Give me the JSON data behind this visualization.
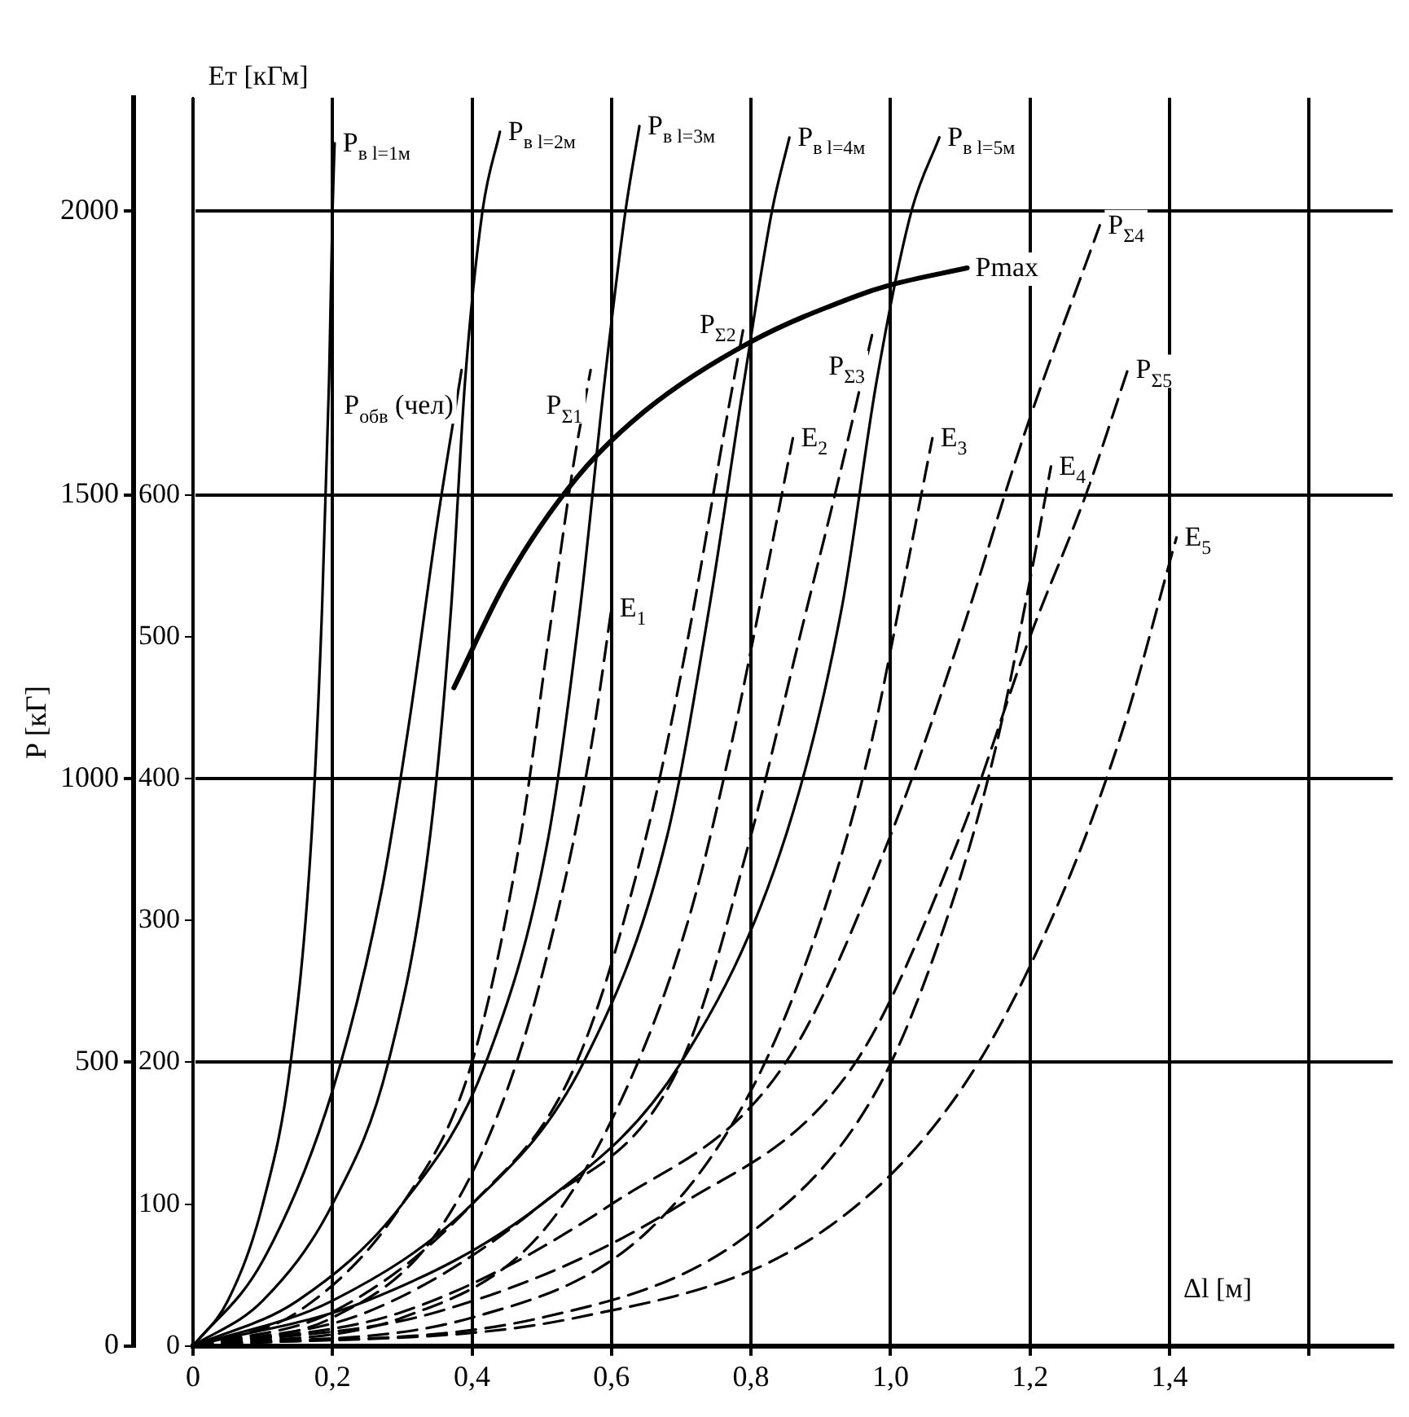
{
  "chart_data": {
    "type": "line",
    "xlabel": "Δl [м]",
    "ylabel": "P [кГ]",
    "y2label": "Eт [кГм]",
    "xlim": [
      0,
      1.72
    ],
    "xticks": [
      0,
      {
        "value": 0.2,
        "label": "0,2"
      },
      {
        "value": 0.4,
        "label": "0,4"
      },
      {
        "value": 0.6,
        "label": "0,6"
      },
      {
        "value": 0.8,
        "label": "0,8"
      },
      {
        "value": 1.0,
        "label": "1,0"
      },
      {
        "value": 1.2,
        "label": "1,2"
      },
      {
        "value": 1.4,
        "label": "1,4"
      },
      {
        "value": 1.6,
        "label": null
      }
    ],
    "ylim": [
      0,
      2200
    ],
    "yticks": [
      0,
      500,
      1000,
      1500,
      2000
    ],
    "y2lim": [
      0,
      880
    ],
    "y2ticks": [
      0,
      100,
      200,
      300,
      400,
      500,
      600
    ],
    "grid": true,
    "legend": false,
    "marker": "none",
    "series": [
      {
        "name": "P$_{в l=1м}$",
        "color": "#000000",
        "line_style": "solid",
        "x": [
          0,
          0.05,
          0.1,
          0.14,
          0.17,
          0.185,
          0.195,
          0.2,
          0.203
        ],
        "values": [
          0,
          80,
          250,
          500,
          900,
          1300,
          1700,
          2000,
          2120
        ]
      },
      {
        "name": "P$_{в l=2м}$",
        "color": "#000000",
        "line_style": "solid",
        "x": [
          0,
          0.1,
          0.2,
          0.28,
          0.34,
          0.37,
          0.39,
          0.415,
          0.44
        ],
        "values": [
          0,
          80,
          250,
          500,
          900,
          1300,
          1700,
          2000,
          2140
        ]
      },
      {
        "name": "P$_{в l=3м}$",
        "color": "#000000",
        "line_style": "solid",
        "x": [
          0,
          0.15,
          0.3,
          0.42,
          0.51,
          0.555,
          0.59,
          0.62,
          0.64
        ],
        "values": [
          0,
          80,
          250,
          500,
          900,
          1300,
          1700,
          2000,
          2150
        ]
      },
      {
        "name": "P$_{в l=4м}$",
        "color": "#000000",
        "line_style": "solid",
        "x": [
          0,
          0.2,
          0.4,
          0.56,
          0.68,
          0.74,
          0.79,
          0.83,
          0.855
        ],
        "values": [
          0,
          80,
          250,
          500,
          900,
          1300,
          1700,
          2000,
          2130
        ]
      },
      {
        "name": "P$_{в l=5м}$",
        "color": "#000000",
        "line_style": "solid",
        "x": [
          0,
          0.25,
          0.5,
          0.7,
          0.85,
          0.93,
          0.98,
          1.03,
          1.07
        ],
        "values": [
          0,
          80,
          250,
          500,
          900,
          1300,
          1700,
          2000,
          2130
        ]
      },
      {
        "name": "P$_{обв}$ (чел)",
        "color": "#000000",
        "line_style": "solid",
        "x": [
          0,
          0.1,
          0.2,
          0.27,
          0.31,
          0.35,
          0.385
        ],
        "values": [
          0,
          150,
          450,
          800,
          1100,
          1450,
          1720
        ]
      },
      {
        "name": "Pmax",
        "color": "#000000",
        "line_style": "solid",
        "x": [
          0.374,
          0.45,
          0.55,
          0.65,
          0.8,
          0.95,
          1.0,
          1.11
        ],
        "values": [
          1160,
          1350,
          1530,
          1650,
          1770,
          1850,
          1870,
          1900
        ]
      },
      {
        "name": "P$_{Σ1}$",
        "color": "#000000",
        "line_style": "dashed",
        "x": [
          0,
          0.15,
          0.3,
          0.4,
          0.47,
          0.51,
          0.545,
          0.57
        ],
        "values": [
          0,
          60,
          250,
          500,
          900,
          1250,
          1550,
          1720
        ]
      },
      {
        "name": "P$_{Σ2}$",
        "color": "#000000",
        "line_style": "dashed",
        "x": [
          0,
          0.2,
          0.4,
          0.55,
          0.65,
          0.71,
          0.76,
          0.79
        ],
        "values": [
          0,
          60,
          250,
          500,
          900,
          1250,
          1600,
          1800
        ]
      },
      {
        "name": "P$_{Σ3}$",
        "color": "#000000",
        "line_style": "dashed",
        "x": [
          0,
          0.25,
          0.5,
          0.7,
          0.8,
          0.87,
          0.93,
          0.975
        ],
        "values": [
          0,
          60,
          250,
          500,
          900,
          1250,
          1550,
          1790
        ]
      },
      {
        "name": "P$_{Σ4}$",
        "color": "#000000",
        "line_style": "dashed",
        "x": [
          0,
          0.3,
          0.6,
          0.85,
          1.0,
          1.1,
          1.19,
          1.3
        ],
        "values": [
          0,
          60,
          250,
          500,
          900,
          1250,
          1600,
          1975
        ]
      },
      {
        "name": "P$_{Σ5}$",
        "color": "#000000",
        "line_style": "dashed",
        "x": [
          0,
          0.35,
          0.7,
          0.95,
          1.1,
          1.2,
          1.28,
          1.34
        ],
        "values": [
          0,
          60,
          250,
          500,
          900,
          1250,
          1500,
          1720
        ]
      },
      {
        "name": "E$_{1}$",
        "color": "#000000",
        "line_style": "dashed",
        "axis": "y2",
        "x": [
          0,
          0.2,
          0.35,
          0.45,
          0.52,
          0.57,
          0.6
        ],
        "values": [
          0,
          20,
          80,
          180,
          300,
          420,
          520
        ]
      },
      {
        "name": "E$_{2}$",
        "color": "#000000",
        "line_style": "dashed",
        "axis": "y2",
        "x": [
          0,
          0.3,
          0.5,
          0.62,
          0.71,
          0.77,
          0.82,
          0.86
        ],
        "values": [
          0,
          20,
          80,
          180,
          300,
          420,
          540,
          640
        ]
      },
      {
        "name": "E$_{3}$",
        "color": "#000000",
        "line_style": "dashed",
        "axis": "y2",
        "x": [
          0,
          0.4,
          0.65,
          0.8,
          0.9,
          0.97,
          1.02,
          1.06
        ],
        "values": [
          0,
          20,
          80,
          180,
          300,
          420,
          540,
          640
        ]
      },
      {
        "name": "E$_{4}$",
        "color": "#000000",
        "line_style": "dashed",
        "axis": "y2",
        "x": [
          0,
          0.5,
          0.8,
          0.98,
          1.08,
          1.15,
          1.2,
          1.23
        ],
        "values": [
          0,
          20,
          80,
          180,
          300,
          420,
          540,
          620
        ]
      },
      {
        "name": "E$_{5}$",
        "color": "#000000",
        "line_style": "dashed",
        "axis": "y2",
        "x": [
          0,
          0.55,
          0.9,
          1.1,
          1.23,
          1.33,
          1.41
        ],
        "values": [
          0,
          20,
          80,
          180,
          300,
          430,
          570
        ]
      }
    ]
  }
}
